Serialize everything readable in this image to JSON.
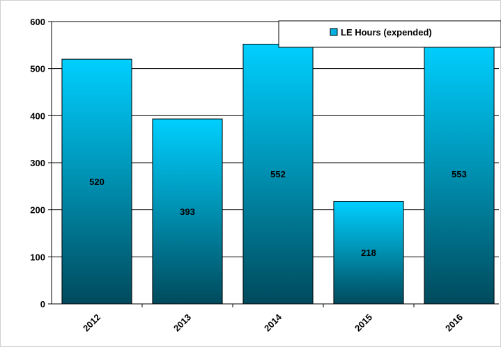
{
  "chart_data": {
    "type": "bar",
    "title": "",
    "xlabel": "",
    "ylabel": "",
    "categories": [
      "2012",
      "2013",
      "2014",
      "2015",
      "2016"
    ],
    "series": [
      {
        "name": "LE Hours (expended)",
        "values": [
          520,
          393,
          552,
          218,
          553
        ]
      }
    ],
    "data_labels": [
      "520",
      "393",
      "552",
      "218",
      "553"
    ],
    "ylim": [
      0,
      600
    ],
    "yticks": [
      0,
      100,
      200,
      300,
      400,
      500,
      600
    ],
    "grid": true,
    "legend_position": "top-right",
    "colors": {
      "bar_top": "#00cfff",
      "bar_bottom": "#004a5c",
      "grid": "#000000",
      "legend_swatch": "#00b0e0"
    }
  }
}
